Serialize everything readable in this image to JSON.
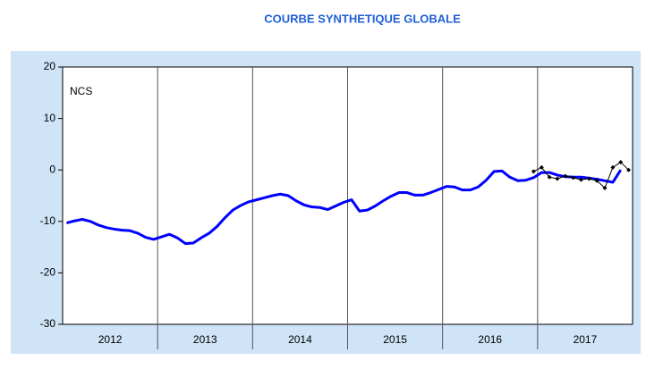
{
  "chart_data": {
    "type": "line",
    "title": "COURBE SYNTHETIQUE GLOBALE",
    "annotation": "NCS",
    "xlim": [
      2012,
      2018
    ],
    "xticks": [
      2013,
      2014,
      2015,
      2016,
      2017
    ],
    "x_categories": [
      "2012",
      "2013",
      "2014",
      "2015",
      "2016",
      "2017"
    ],
    "ylim": [
      -30,
      20
    ],
    "yticks": [
      -30,
      -20,
      -10,
      0,
      10,
      20
    ],
    "x": [
      2012.042,
      2012.125,
      2012.208,
      2012.292,
      2012.375,
      2012.458,
      2012.542,
      2012.625,
      2012.708,
      2012.792,
      2012.875,
      2012.958,
      2013.042,
      2013.125,
      2013.208,
      2013.292,
      2013.375,
      2013.458,
      2013.542,
      2013.625,
      2013.708,
      2013.792,
      2013.875,
      2013.958,
      2014.042,
      2014.125,
      2014.208,
      2014.292,
      2014.375,
      2014.458,
      2014.542,
      2014.625,
      2014.708,
      2014.792,
      2014.875,
      2014.958,
      2015.042,
      2015.125,
      2015.208,
      2015.292,
      2015.375,
      2015.458,
      2015.542,
      2015.625,
      2015.708,
      2015.792,
      2015.875,
      2015.958,
      2016.042,
      2016.125,
      2016.208,
      2016.292,
      2016.375,
      2016.458,
      2016.542,
      2016.625,
      2016.708,
      2016.792,
      2016.875,
      2016.958,
      2017.042,
      2017.125,
      2017.208,
      2017.292,
      2017.375,
      2017.458,
      2017.542,
      2017.625,
      2017.708,
      2017.792,
      2017.875,
      2017.958
    ],
    "series": [
      {
        "color": "#0000ff",
        "marker": false,
        "values": [
          -10.3,
          -9.9,
          -9.6,
          -10.0,
          -10.7,
          -11.2,
          -11.5,
          -11.7,
          -11.8,
          -12.3,
          -13.1,
          -13.5,
          -13.0,
          -12.5,
          -13.2,
          -14.3,
          -14.2,
          -13.2,
          -12.3,
          -11.0,
          -9.3,
          -7.8,
          -6.9,
          -6.2,
          -5.8,
          -5.4,
          -5.0,
          -4.7,
          -5.0,
          -6.0,
          -6.8,
          -7.2,
          -7.3,
          -7.7,
          -7.0,
          -6.3,
          -5.8,
          -8.0,
          -7.8,
          -7.0,
          -6.0,
          -5.1,
          -4.4,
          -4.4,
          -4.9,
          -4.9,
          -4.4,
          -3.8,
          -3.2,
          -3.3,
          -3.9,
          -3.9,
          -3.3,
          -2.0,
          -0.3,
          -0.2,
          -1.4,
          -2.1,
          -2.0,
          -1.5,
          -0.5,
          -0.5,
          -1.0,
          -1.3,
          -1.4,
          -1.4,
          -1.6,
          -1.8,
          -2.1,
          -2.4,
          0.0,
          null
        ]
      },
      {
        "color": "#000000",
        "marker": true,
        "values": [
          null,
          null,
          null,
          null,
          null,
          null,
          null,
          null,
          null,
          null,
          null,
          null,
          null,
          null,
          null,
          null,
          null,
          null,
          null,
          null,
          null,
          null,
          null,
          null,
          null,
          null,
          null,
          null,
          null,
          null,
          null,
          null,
          null,
          null,
          null,
          null,
          null,
          null,
          null,
          null,
          null,
          null,
          null,
          null,
          null,
          null,
          null,
          null,
          null,
          null,
          null,
          null,
          null,
          null,
          null,
          null,
          null,
          null,
          null,
          -0.3,
          0.5,
          -1.4,
          -1.7,
          -1.2,
          -1.5,
          -1.9,
          -1.7,
          -2.1,
          -3.5,
          0.5,
          1.5,
          0.0
        ]
      }
    ]
  }
}
